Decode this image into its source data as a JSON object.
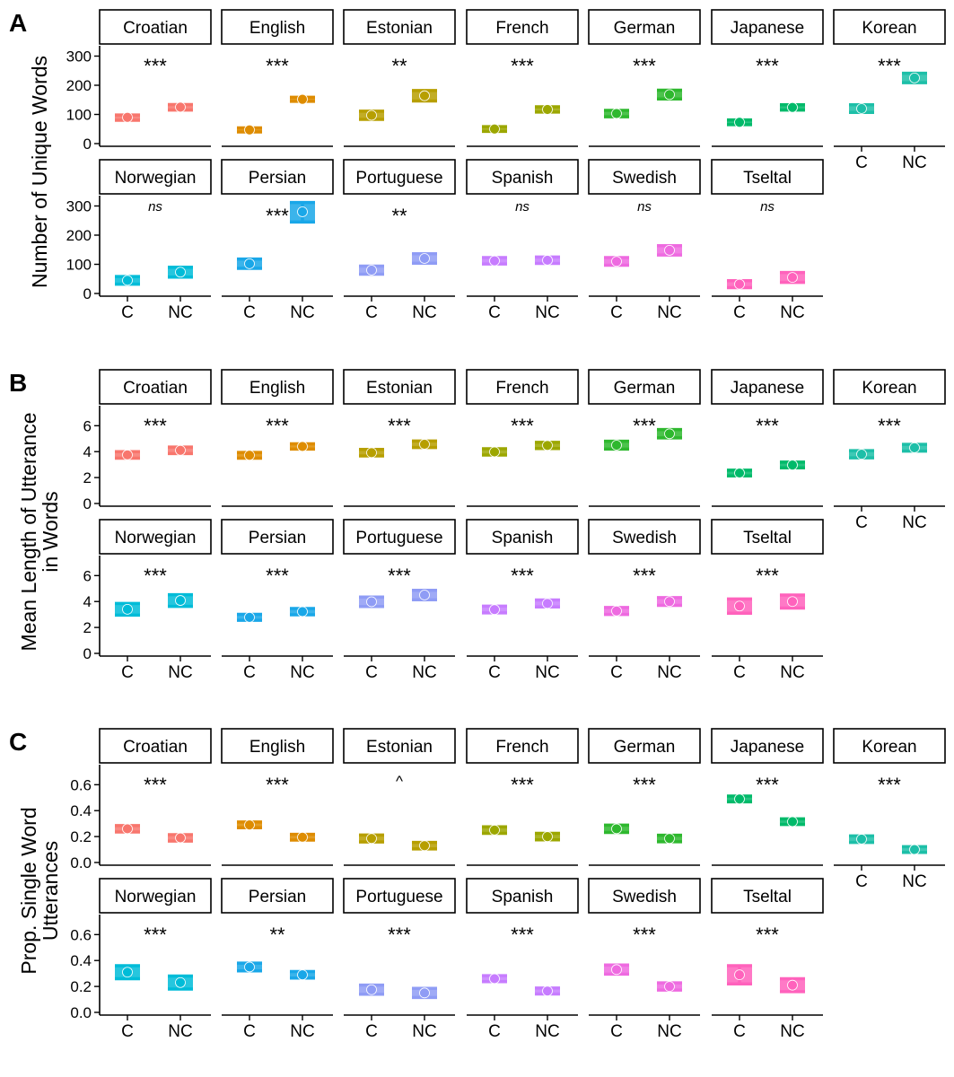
{
  "chart_data": {
    "type": "errorbar",
    "x_categories": [
      "C",
      "NC"
    ],
    "language_colors": {
      "Croatian": "#F8766D",
      "English": "#DE8C00",
      "Estonian": "#B79F00",
      "French": "#9CA700",
      "German": "#2EB82E",
      "Japanese": "#00BA6A",
      "Korean": "#1DBFA8",
      "Norwegian": "#00BCD8",
      "Persian": "#19A7E8",
      "Portuguese": "#8F9CF5",
      "Spanish": "#C77CFF",
      "Swedish": "#EE6AE0",
      "Tseltal": "#FF62BC"
    },
    "panels": [
      {
        "label": "A",
        "ylabel_lines": [
          "Number of Unique Words"
        ],
        "ylim": [
          0,
          320
        ],
        "yticks": [
          0,
          100,
          200,
          300
        ],
        "tick_labels": [
          "0",
          "100",
          "200",
          "300"
        ],
        "facets": [
          {
            "language": "Croatian",
            "sig": "***",
            "C": {
              "mean": 90,
              "lo": 80,
              "hi": 98
            },
            "NC": {
              "mean": 125,
              "lo": 115,
              "hi": 134
            }
          },
          {
            "language": "English",
            "sig": "***",
            "C": {
              "mean": 47,
              "lo": 40,
              "hi": 54
            },
            "NC": {
              "mean": 152,
              "lo": 145,
              "hi": 159
            }
          },
          {
            "language": "Estonian",
            "sig": "**",
            "C": {
              "mean": 97,
              "lo": 83,
              "hi": 111
            },
            "NC": {
              "mean": 164,
              "lo": 146,
              "hi": 182
            }
          },
          {
            "language": "French",
            "sig": "***",
            "C": {
              "mean": 50,
              "lo": 42,
              "hi": 58
            },
            "NC": {
              "mean": 117,
              "lo": 108,
              "hi": 126
            }
          },
          {
            "language": "German",
            "sig": "***",
            "C": {
              "mean": 103,
              "lo": 92,
              "hi": 114
            },
            "NC": {
              "mean": 168,
              "lo": 153,
              "hi": 183
            }
          },
          {
            "language": "Japanese",
            "sig": "***",
            "C": {
              "mean": 73,
              "lo": 65,
              "hi": 81
            },
            "NC": {
              "mean": 124,
              "lo": 115,
              "hi": 133
            }
          },
          {
            "language": "Korean",
            "sig": "***",
            "C": {
              "mean": 120,
              "lo": 107,
              "hi": 133
            },
            "NC": {
              "mean": 225,
              "lo": 209,
              "hi": 241
            }
          },
          {
            "language": "Norwegian",
            "sig": "ns",
            "C": {
              "mean": 45,
              "lo": 32,
              "hi": 58
            },
            "NC": {
              "mean": 73,
              "lo": 56,
              "hi": 90
            }
          },
          {
            "language": "Persian",
            "sig": "***",
            "C": {
              "mean": 102,
              "lo": 86,
              "hi": 118
            },
            "NC": {
              "mean": 280,
              "lo": 245,
              "hi": 312
            }
          },
          {
            "language": "Portuguese",
            "sig": "**",
            "C": {
              "mean": 80,
              "lo": 66,
              "hi": 94
            },
            "NC": {
              "mean": 120,
              "lo": 104,
              "hi": 136
            }
          },
          {
            "language": "Spanish",
            "sig": "ns",
            "C": {
              "mean": 112,
              "lo": 101,
              "hi": 123
            },
            "NC": {
              "mean": 114,
              "lo": 103,
              "hi": 125
            }
          },
          {
            "language": "Swedish",
            "sig": "ns",
            "C": {
              "mean": 110,
              "lo": 97,
              "hi": 123
            },
            "NC": {
              "mean": 148,
              "lo": 132,
              "hi": 164
            }
          },
          {
            "language": "Tseltal",
            "sig": "ns",
            "C": {
              "mean": 32,
              "lo": 20,
              "hi": 44
            },
            "NC": {
              "mean": 55,
              "lo": 38,
              "hi": 72
            }
          }
        ]
      },
      {
        "label": "B",
        "ylabel_lines": [
          "Mean Length of Utterance",
          "in Words"
        ],
        "ylim": [
          0,
          7.2
        ],
        "yticks": [
          0,
          2,
          4,
          6
        ],
        "tick_labels": [
          "0",
          "2",
          "4",
          "6"
        ],
        "facets": [
          {
            "language": "Croatian",
            "sig": "***",
            "C": {
              "mean": 3.75,
              "lo": 3.5,
              "hi": 4.0
            },
            "NC": {
              "mean": 4.1,
              "lo": 3.85,
              "hi": 4.35
            }
          },
          {
            "language": "English",
            "sig": "***",
            "C": {
              "mean": 3.72,
              "lo": 3.5,
              "hi": 3.94
            },
            "NC": {
              "mean": 4.4,
              "lo": 4.2,
              "hi": 4.6
            }
          },
          {
            "language": "Estonian",
            "sig": "***",
            "C": {
              "mean": 3.92,
              "lo": 3.67,
              "hi": 4.17
            },
            "NC": {
              "mean": 4.57,
              "lo": 4.32,
              "hi": 4.82
            }
          },
          {
            "language": "French",
            "sig": "***",
            "C": {
              "mean": 3.98,
              "lo": 3.74,
              "hi": 4.22
            },
            "NC": {
              "mean": 4.48,
              "lo": 4.24,
              "hi": 4.72
            }
          },
          {
            "language": "German",
            "sig": "***",
            "C": {
              "mean": 4.5,
              "lo": 4.2,
              "hi": 4.8
            },
            "NC": {
              "mean": 5.38,
              "lo": 5.06,
              "hi": 5.7
            }
          },
          {
            "language": "Japanese",
            "sig": "***",
            "C": {
              "mean": 2.35,
              "lo": 2.13,
              "hi": 2.57
            },
            "NC": {
              "mean": 2.97,
              "lo": 2.75,
              "hi": 3.19
            }
          },
          {
            "language": "Korean",
            "sig": "***",
            "C": {
              "mean": 3.8,
              "lo": 3.52,
              "hi": 4.08
            },
            "NC": {
              "mean": 4.3,
              "lo": 4.04,
              "hi": 4.56
            }
          },
          {
            "language": "Norwegian",
            "sig": "***",
            "C": {
              "mean": 3.4,
              "lo": 2.95,
              "hi": 3.85
            },
            "NC": {
              "mean": 4.08,
              "lo": 3.63,
              "hi": 4.53
            }
          },
          {
            "language": "Persian",
            "sig": "***",
            "C": {
              "mean": 2.78,
              "lo": 2.55,
              "hi": 3.01
            },
            "NC": {
              "mean": 3.22,
              "lo": 2.98,
              "hi": 3.46
            }
          },
          {
            "language": "Portuguese",
            "sig": "***",
            "C": {
              "mean": 3.98,
              "lo": 3.62,
              "hi": 4.34
            },
            "NC": {
              "mean": 4.5,
              "lo": 4.14,
              "hi": 4.86
            }
          },
          {
            "language": "Spanish",
            "sig": "***",
            "C": {
              "mean": 3.38,
              "lo": 3.12,
              "hi": 3.64
            },
            "NC": {
              "mean": 3.85,
              "lo": 3.58,
              "hi": 4.12
            }
          },
          {
            "language": "Swedish",
            "sig": "***",
            "C": {
              "mean": 3.27,
              "lo": 3.0,
              "hi": 3.54
            },
            "NC": {
              "mean": 4.0,
              "lo": 3.7,
              "hi": 4.3
            }
          },
          {
            "language": "Tseltal",
            "sig": "***",
            "C": {
              "mean": 3.65,
              "lo": 3.1,
              "hi": 4.2
            },
            "NC": {
              "mean": 4.0,
              "lo": 3.5,
              "hi": 4.5
            }
          }
        ]
      },
      {
        "label": "C",
        "ylabel_lines": [
          "Prop. Single Word",
          "Utterances"
        ],
        "ylim": [
          0,
          0.72
        ],
        "yticks": [
          0,
          0.2,
          0.4,
          0.6
        ],
        "tick_labels": [
          "0.0",
          "0.2",
          "0.4",
          "0.6"
        ],
        "facets": [
          {
            "language": "Croatian",
            "sig": "***",
            "C": {
              "mean": 0.26,
              "lo": 0.235,
              "hi": 0.285
            },
            "NC": {
              "mean": 0.19,
              "lo": 0.165,
              "hi": 0.215
            }
          },
          {
            "language": "English",
            "sig": "***",
            "C": {
              "mean": 0.29,
              "lo": 0.268,
              "hi": 0.312
            },
            "NC": {
              "mean": 0.195,
              "lo": 0.173,
              "hi": 0.217
            }
          },
          {
            "language": "Estonian",
            "sig": "^",
            "C": {
              "mean": 0.185,
              "lo": 0.158,
              "hi": 0.212
            },
            "NC": {
              "mean": 0.13,
              "lo": 0.105,
              "hi": 0.155
            }
          },
          {
            "language": "French",
            "sig": "***",
            "C": {
              "mean": 0.25,
              "lo": 0.225,
              "hi": 0.275
            },
            "NC": {
              "mean": 0.2,
              "lo": 0.175,
              "hi": 0.225
            }
          },
          {
            "language": "German",
            "sig": "***",
            "C": {
              "mean": 0.26,
              "lo": 0.232,
              "hi": 0.288
            },
            "NC": {
              "mean": 0.185,
              "lo": 0.16,
              "hi": 0.21
            }
          },
          {
            "language": "Japanese",
            "sig": "***",
            "C": {
              "mean": 0.49,
              "lo": 0.468,
              "hi": 0.512
            },
            "NC": {
              "mean": 0.315,
              "lo": 0.293,
              "hi": 0.337
            }
          },
          {
            "language": "Korean",
            "sig": "***",
            "C": {
              "mean": 0.18,
              "lo": 0.155,
              "hi": 0.205
            },
            "NC": {
              "mean": 0.1,
              "lo": 0.078,
              "hi": 0.122
            }
          },
          {
            "language": "Norwegian",
            "sig": "***",
            "C": {
              "mean": 0.31,
              "lo": 0.26,
              "hi": 0.36
            },
            "NC": {
              "mean": 0.23,
              "lo": 0.18,
              "hi": 0.28
            }
          },
          {
            "language": "Persian",
            "sig": "**",
            "C": {
              "mean": 0.35,
              "lo": 0.32,
              "hi": 0.38
            },
            "NC": {
              "mean": 0.29,
              "lo": 0.265,
              "hi": 0.315
            }
          },
          {
            "language": "Portuguese",
            "sig": "***",
            "C": {
              "mean": 0.175,
              "lo": 0.14,
              "hi": 0.21
            },
            "NC": {
              "mean": 0.15,
              "lo": 0.115,
              "hi": 0.185
            }
          },
          {
            "language": "Spanish",
            "sig": "***",
            "C": {
              "mean": 0.26,
              "lo": 0.237,
              "hi": 0.283
            },
            "NC": {
              "mean": 0.165,
              "lo": 0.142,
              "hi": 0.188
            }
          },
          {
            "language": "Swedish",
            "sig": "***",
            "C": {
              "mean": 0.33,
              "lo": 0.295,
              "hi": 0.365
            },
            "NC": {
              "mean": 0.2,
              "lo": 0.172,
              "hi": 0.228
            }
          },
          {
            "language": "Tseltal",
            "sig": "***",
            "C": {
              "mean": 0.29,
              "lo": 0.22,
              "hi": 0.36
            },
            "NC": {
              "mean": 0.21,
              "lo": 0.16,
              "hi": 0.26
            }
          }
        ]
      }
    ]
  }
}
